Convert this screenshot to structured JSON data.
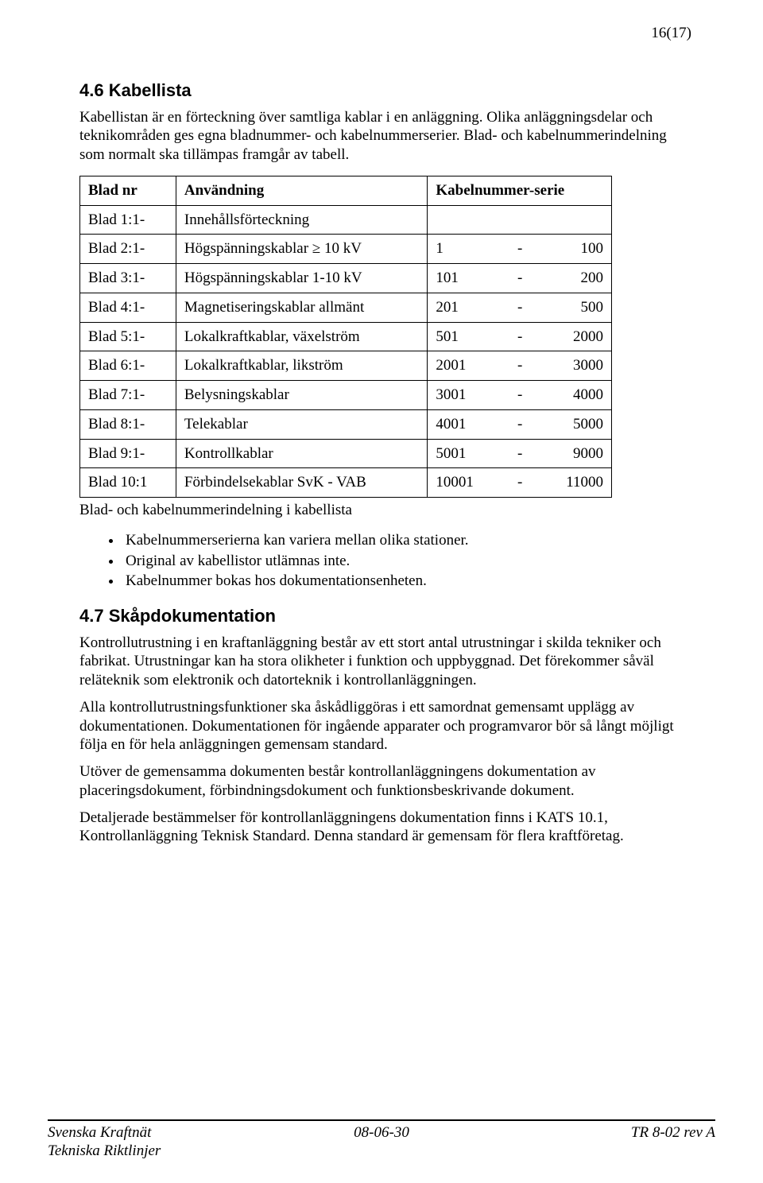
{
  "page_number": "16(17)",
  "section1": {
    "number": "4.6",
    "title": "Kabellista",
    "para1": "Kabellistan är en förteckning över samtliga kablar i en anläggning. Olika anläggningsdelar och teknikområden ges egna bladnummer- och kabelnummerserier. Blad- och kabelnummerindelning som normalt ska tillämpas framgår av tabell."
  },
  "table": {
    "header": {
      "c1": "Blad nr",
      "c2": "Användning",
      "c3": "Kabelnummer-serie"
    },
    "rows": [
      {
        "c1": "Blad 1:1-",
        "c2": "Innehållsförteckning",
        "from": "",
        "to": ""
      },
      {
        "c1": "Blad 2:1-",
        "c2": "Högspänningskablar ≥ 10 kV",
        "from": "1",
        "to": "100"
      },
      {
        "c1": "Blad 3:1-",
        "c2": "Högspänningskablar 1-10 kV",
        "from": "101",
        "to": "200"
      },
      {
        "c1": "Blad 4:1-",
        "c2": "Magnetiseringskablar allmänt",
        "from": "201",
        "to": "500"
      },
      {
        "c1": "Blad 5:1-",
        "c2": "Lokalkraftkablar, växelström",
        "from": "501",
        "to": "2000"
      },
      {
        "c1": "Blad 6:1-",
        "c2": "Lokalkraftkablar, likström",
        "from": "2001",
        "to": "3000"
      },
      {
        "c1": "Blad 7:1-",
        "c2": "Belysningskablar",
        "from": "3001",
        "to": "4000"
      },
      {
        "c1": "Blad 8:1-",
        "c2": "Telekablar",
        "from": "4001",
        "to": "5000"
      },
      {
        "c1": "Blad 9:1-",
        "c2": "Kontrollkablar",
        "from": "5001",
        "to": "9000"
      },
      {
        "c1": "Blad 10:1",
        "c2": "Förbindelsekablar SvK - VAB",
        "from": "10001",
        "to": "11000"
      }
    ],
    "caption": "Blad- och kabelnummerindelning i kabellista",
    "dash": "-"
  },
  "bullets": [
    "Kabelnummerserierna kan variera mellan olika stationer.",
    "Original av kabellistor utlämnas inte.",
    "Kabelnummer bokas hos dokumentationsenheten."
  ],
  "section2": {
    "number": "4.7",
    "title": "Skåpdokumentation",
    "para1": "Kontrollutrustning i en kraftanläggning består av ett stort antal utrustningar i skilda tekniker och fabrikat. Utrustningar kan ha stora olikheter i funktion och uppbyggnad. Det förekommer såväl reläteknik som elektronik och datorteknik i kontrollanläggningen.",
    "para2": "Alla kontrollutrustningsfunktioner ska åskådliggöras i ett samordnat gemensamt upplägg av dokumentationen. Dokumentationen för ingående apparater och programvaror bör så långt möjligt följa en för hela anläggningen gemensam standard.",
    "para3": "Utöver de gemensamma dokumenten består kontrollanläggningens dokumentation av placeringsdokument, förbindningsdokument och funktionsbeskrivande dokument.",
    "para4": "Detaljerade bestämmelser för kontrollanläggningens dokumentation finns i KATS 10.1, Kontrollanläggning Teknisk Standard. Denna standard är gemensam för flera kraftföretag."
  },
  "footer": {
    "left1": "Svenska Kraftnät",
    "left2": "Tekniska Riktlinjer",
    "center": "08-06-30",
    "right": "TR 8-02 rev A"
  }
}
